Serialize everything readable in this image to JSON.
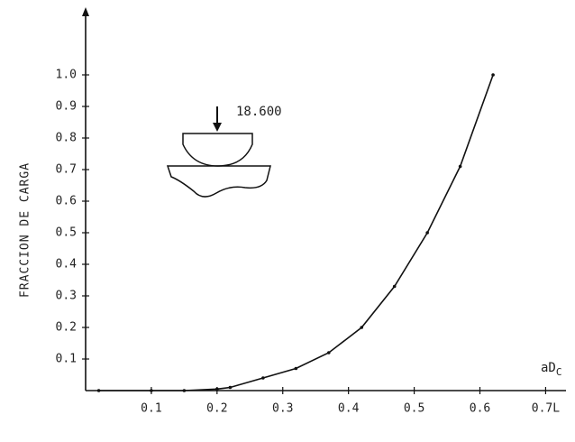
{
  "chart_data": {
    "type": "line",
    "y_label": "FRACCION DE CARGA",
    "x_label": "aD",
    "x_label_sub": "C",
    "annotation": "18.600",
    "x": [
      0.02,
      0.1,
      0.15,
      0.2,
      0.22,
      0.27,
      0.32,
      0.37,
      0.42,
      0.47,
      0.52,
      0.57,
      0.62
    ],
    "values": [
      0,
      0,
      0,
      0.005,
      0.01,
      0.04,
      0.07,
      0.12,
      0.2,
      0.33,
      0.5,
      0.71,
      1.0
    ],
    "color": "#111111",
    "xlim": [
      0,
      0.72
    ],
    "xticks": [
      0.1,
      0.2,
      0.3,
      0.4,
      0.5,
      0.6,
      {
        "value": 0.7,
        "label": "0.7L"
      }
    ],
    "ylim": [
      0,
      1.12
    ],
    "yticks": [
      0.1,
      0.2,
      0.3,
      0.4,
      0.5,
      0.6,
      0.7,
      0.8,
      0.9,
      {
        "value": 1.0,
        "label": "1.0"
      }
    ],
    "grid": false
  }
}
